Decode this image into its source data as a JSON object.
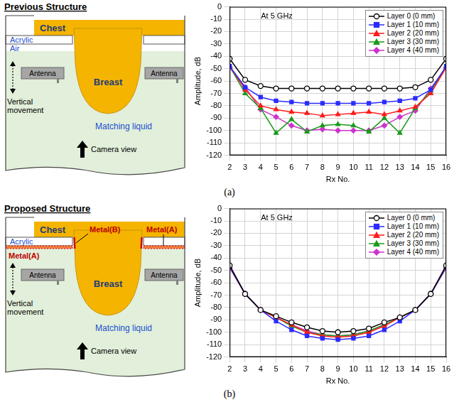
{
  "panels": [
    {
      "label": "(a)",
      "diagram": {
        "title": "Previous Structure",
        "chest": "Chest",
        "acrylic": "Acrylic",
        "air": "Air",
        "breast": "Breast",
        "antennas": [
          "Antenna",
          "Antenna"
        ],
        "movement": "Vertical movement",
        "liquid": "Matching liquid",
        "camera": "Camera view"
      }
    },
    {
      "label": "(b)",
      "diagram": {
        "title": "Proposed Structure",
        "chest": "Chest",
        "acrylic": "Acrylic",
        "metal_b": "Metal(B)",
        "metal_a": [
          "Metal(A)",
          "Metal(A)"
        ],
        "breast": "Breast",
        "antennas": [
          "Antenna",
          "Antenna"
        ],
        "movement": "Vertical movement",
        "liquid": "Matching liquid",
        "camera": "Camera view"
      }
    }
  ],
  "chart_data": [
    {
      "type": "line",
      "annotation": "At 5 GHz",
      "x_label": "Rx No.",
      "y_label": "Amplitude, dB",
      "xlim": [
        2,
        16
      ],
      "xticks": [
        2,
        3,
        4,
        5,
        6,
        7,
        8,
        9,
        10,
        11,
        12,
        13,
        14,
        15,
        16
      ],
      "ylim": [
        -120,
        0
      ],
      "yticks": [
        0,
        -10,
        -20,
        -30,
        -40,
        -50,
        -60,
        -70,
        -80,
        -90,
        -100,
        -110,
        -120
      ],
      "grid": true,
      "legend": "upper right",
      "x": [
        2,
        3,
        4,
        5,
        6,
        7,
        8,
        9,
        10,
        11,
        12,
        13,
        14,
        15,
        16
      ],
      "series": [
        {
          "name": "Layer 0 (0 mm)",
          "color": "#000000",
          "marker": "open_circle",
          "values": [
            -42,
            -59,
            -64,
            -66,
            -66,
            -66,
            -66,
            -66,
            -66,
            -66,
            -66,
            -66,
            -65,
            -59,
            -42
          ]
        },
        {
          "name": "Layer 1 (10 mm)",
          "color": "#2b2bff",
          "marker": "square",
          "values": [
            -48,
            -65,
            -73,
            -76,
            -77,
            -78,
            -78,
            -78,
            -78,
            -78,
            -77,
            -76,
            -74,
            -67,
            -48
          ]
        },
        {
          "name": "Layer 2 (20 mm)",
          "color": "#ff1a1a",
          "marker": "triangle",
          "values": [
            -48,
            -67,
            -80,
            -83,
            -85,
            -86,
            -88,
            -87,
            -86,
            -85,
            -87,
            -84,
            -81,
            -70,
            -49
          ]
        },
        {
          "name": "Layer 3 (30 mm)",
          "color": "#1a9a1a",
          "marker": "triangle",
          "values": [
            -48,
            -70,
            -82,
            -102,
            -91,
            -101,
            -96,
            -95,
            -96,
            -101,
            -90,
            -102,
            -82,
            -68,
            -49
          ]
        },
        {
          "name": "Layer 4 (40 mm)",
          "color": "#cc33cc",
          "marker": "diamond",
          "values": [
            -49,
            -65,
            -83,
            -89,
            -96,
            -100,
            -99,
            -100,
            -100,
            -100,
            -96,
            -89,
            -84,
            -66,
            -49
          ]
        }
      ]
    },
    {
      "type": "line",
      "annotation": "At 5 GHz",
      "x_label": "Rx No.",
      "y_label": "Amplitude, dB",
      "xlim": [
        2,
        16
      ],
      "xticks": [
        2,
        3,
        4,
        5,
        6,
        7,
        8,
        9,
        10,
        11,
        12,
        13,
        14,
        15,
        16
      ],
      "ylim": [
        -120,
        0
      ],
      "yticks": [
        0,
        -10,
        -20,
        -30,
        -40,
        -50,
        -60,
        -70,
        -80,
        -90,
        -100,
        -110,
        -120
      ],
      "grid": true,
      "legend": "upper right",
      "x": [
        2,
        3,
        4,
        5,
        6,
        7,
        8,
        9,
        10,
        11,
        12,
        13,
        14,
        15,
        16
      ],
      "series": [
        {
          "name": "Layer 0 (0 mm)",
          "color": "#000000",
          "marker": "open_circle",
          "values": [
            -46,
            -69,
            -82,
            -87,
            -92,
            -96,
            -99,
            -100,
            -99,
            -97,
            -92,
            -88,
            -82,
            -69,
            -46
          ]
        },
        {
          "name": "Layer 1 (10 mm)",
          "color": "#2b2bff",
          "marker": "square",
          "values": [
            -47,
            -69,
            -82,
            -91,
            -98,
            -103,
            -105,
            -106,
            -105,
            -103,
            -98,
            -91,
            -82,
            -69,
            -47
          ]
        },
        {
          "name": "Layer 2 (20 mm)",
          "color": "#ff1a1a",
          "marker": "triangle",
          "values": [
            -47,
            -69,
            -82,
            -88,
            -94,
            -100,
            -103,
            -104,
            -103,
            -100,
            -95,
            -88,
            -82,
            -69,
            -47
          ]
        },
        {
          "name": "Layer 3 (30 mm)",
          "color": "#1a9a1a",
          "marker": "triangle",
          "values": [
            -47,
            -69,
            -82,
            -88,
            -95,
            -100,
            -102,
            -103,
            -102,
            -99,
            -94,
            -88,
            -82,
            -69,
            -47
          ]
        },
        {
          "name": "Layer 4 (40 mm)",
          "color": "#cc33cc",
          "marker": "diamond",
          "values": [
            -48,
            -69,
            -82,
            -88,
            -94,
            -99,
            -102,
            -103,
            -102,
            -99,
            -94,
            -88,
            -82,
            -69,
            -48
          ]
        }
      ]
    }
  ]
}
